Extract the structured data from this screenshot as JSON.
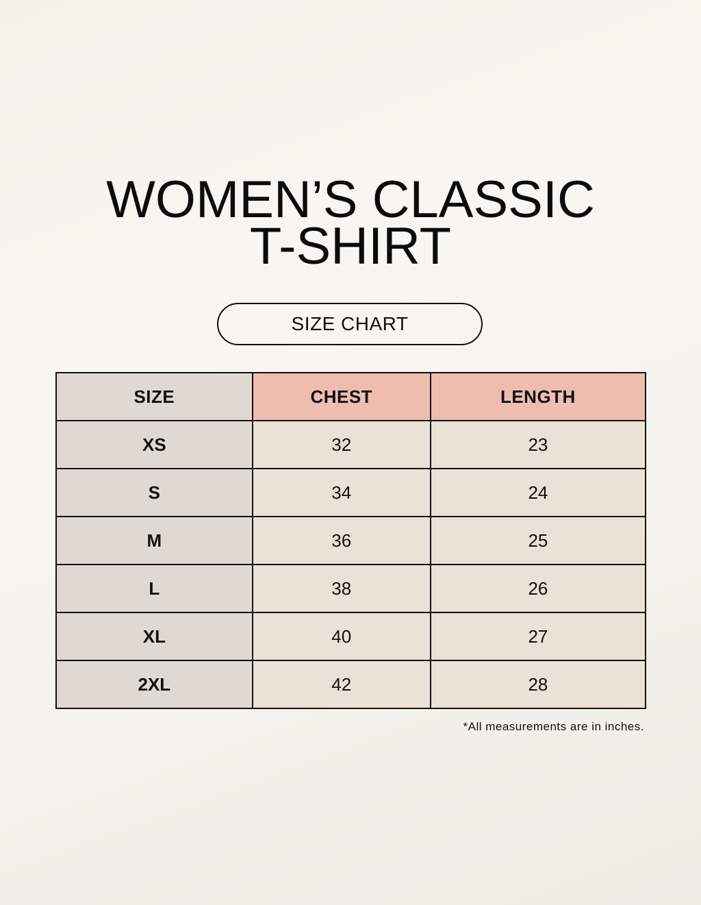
{
  "title_line1": "WOMEN’S CLASSIC",
  "title_line2": "T-SHIRT",
  "badge": "SIZE CHART",
  "table": {
    "headers": [
      "SIZE",
      "CHEST",
      "LENGTH"
    ],
    "rows": [
      [
        "XS",
        "32",
        "23"
      ],
      [
        "S",
        "34",
        "24"
      ],
      [
        "M",
        "36",
        "25"
      ],
      [
        "L",
        "38",
        "26"
      ],
      [
        "XL",
        "40",
        "27"
      ],
      [
        "2XL",
        "42",
        "28"
      ]
    ]
  },
  "note": "*All measurements are in inches.",
  "colors": {
    "size_column": "#e0d8d3",
    "header_accent": "#efbdaf",
    "cell": "#ebe2d7",
    "background": "#f7f5ef"
  }
}
